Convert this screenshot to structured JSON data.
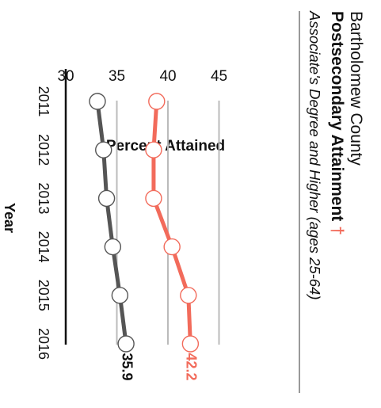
{
  "header": {
    "location": "Bartholomew County",
    "title": "Postsecondary Attainment",
    "title_marker": "†",
    "subtitle": "Associate's Degree and Higher (ages 25-64)"
  },
  "colors": {
    "background": "#ffffff",
    "accent": "#f26b5b",
    "county_line": "#555555",
    "axis": "#111111",
    "gridline": "#bbbbbb",
    "header_rule": "#999999",
    "text": "#111111"
  },
  "chart_data": {
    "type": "line",
    "orientation": "rotated 90 degrees clockwise",
    "xlabel": "Year",
    "ylabel": "Percent Attained",
    "categories": [
      "2011",
      "2012",
      "2013",
      "2014",
      "2015",
      "2016"
    ],
    "y_ticks": [
      "30",
      "35",
      "40",
      "45"
    ],
    "ylim": [
      30,
      46.5
    ],
    "gridlines": [
      35,
      40,
      45
    ],
    "series": [
      {
        "color": "#f26b5b",
        "marker": "hollow circle",
        "values": [
          38.9,
          38.6,
          38.6,
          40.4,
          42.0,
          42.2
        ],
        "end_label": "42.2"
      },
      {
        "color": "#555555",
        "marker": "hollow circle",
        "values": [
          33.1,
          33.7,
          34.0,
          34.6,
          35.3,
          35.9
        ],
        "end_label": "35.9"
      }
    ]
  }
}
